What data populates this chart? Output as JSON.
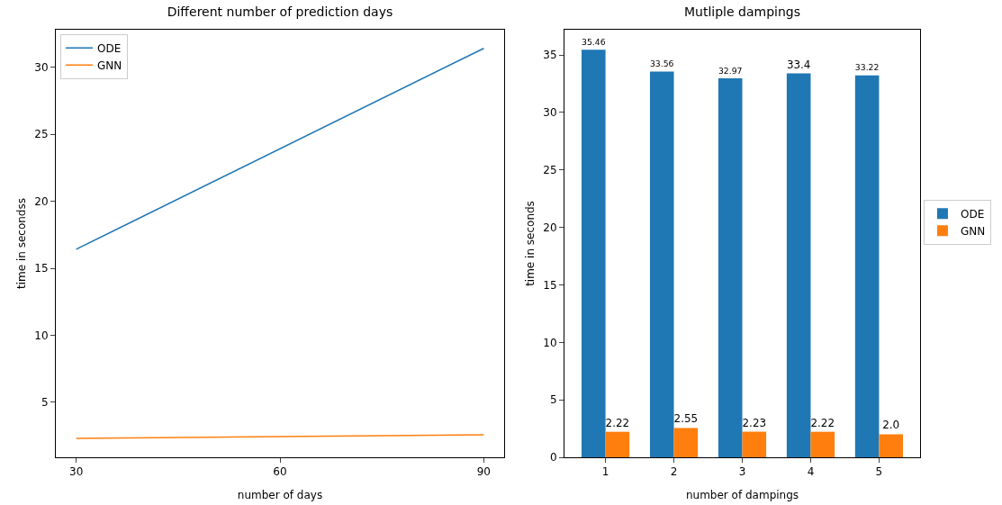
{
  "chart_data": [
    {
      "type": "line",
      "title": "Different number of prediction days",
      "xlabel": "number of days",
      "ylabel": "time in secondss",
      "x": [
        30,
        90
      ],
      "series": [
        {
          "name": "ODE",
          "color": "#1f77b4",
          "values": [
            16.42,
            31.41
          ]
        },
        {
          "name": "GNN",
          "color": "#ff7f0e",
          "values": [
            2.31,
            2.58
          ]
        }
      ],
      "xlim": [
        27,
        93
      ],
      "xticks": [
        30,
        60,
        90
      ],
      "ylim": [
        0.9,
        32.8
      ],
      "yticks": [
        5,
        10,
        15,
        20,
        25,
        30
      ],
      "legend": "top left",
      "grid": false
    },
    {
      "type": "bar",
      "title": "Mutliple dampings",
      "xlabel": "number of dampings",
      "ylabel": "time in seconds",
      "categories": [
        "1",
        "2",
        "3",
        "4",
        "5"
      ],
      "series": [
        {
          "name": "ODE",
          "color": "#1f77b4",
          "values": [
            35.46,
            33.56,
            32.97,
            33.4,
            33.22
          ],
          "value_labels": [
            "35.46",
            "33.56",
            "32.97",
            "33.4",
            "33.22"
          ]
        },
        {
          "name": "GNN",
          "color": "#ff7f0e",
          "values": [
            2.22,
            2.55,
            2.23,
            2.22,
            2.0
          ],
          "value_labels": [
            "2.22",
            "2.55",
            "2.23",
            "2.22",
            "2.0"
          ]
        }
      ],
      "ylim": [
        0,
        37.2
      ],
      "yticks": [
        0,
        5,
        10,
        15,
        20,
        25,
        30,
        35
      ],
      "legend": "right",
      "grid": false
    }
  ]
}
